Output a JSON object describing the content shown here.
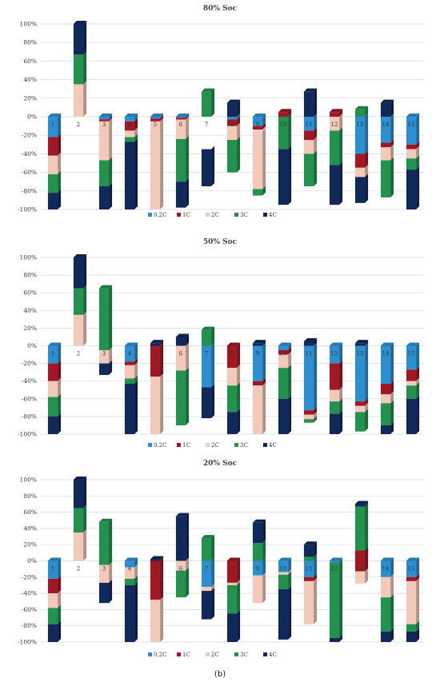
{
  "figure_label": "(b)",
  "colors": {
    "0.2C": "#2e8fd0",
    "1C": "#a01824",
    "2C": "#f3c9bc",
    "3C": "#23914f",
    "4C": "#10285a"
  },
  "chart_data": [
    {
      "type": "bar",
      "stacked": true,
      "title": "80% Soc",
      "ylim": [
        -100,
        100
      ],
      "yticks": [
        "100%",
        "80%",
        "60%",
        "40%",
        "20%",
        "0%",
        "-20%",
        "-40%",
        "-60%",
        "-80%",
        "-100%"
      ],
      "grid": true,
      "legend": "bottom",
      "categories": [
        "1",
        "2",
        "3",
        "4",
        "5",
        "6",
        "7",
        "8",
        "9",
        "10",
        "11",
        "12",
        "13",
        "14",
        "15"
      ],
      "series_names": [
        "0.2C",
        "1C",
        "2C",
        "3C",
        "4C"
      ],
      "bars": [
        [
          [
            -22,
            0
          ],
          [
            -42,
            -22
          ],
          [
            -62,
            -42
          ],
          [
            -82,
            -62
          ],
          [
            -100,
            -82
          ]
        ],
        [
          [
            0,
            0
          ],
          [
            0,
            0
          ],
          [
            0,
            35
          ],
          [
            35,
            67
          ],
          [
            67,
            100
          ]
        ],
        [
          [
            0,
            -3
          ],
          [
            -3,
            -5
          ],
          [
            -5,
            -47
          ],
          [
            -47,
            -75
          ],
          [
            -75,
            -100
          ]
        ],
        [
          [
            0,
            -5
          ],
          [
            -5,
            -15
          ],
          [
            -15,
            -22
          ],
          [
            -22,
            -27
          ],
          [
            -27,
            -100
          ]
        ],
        [
          [
            0,
            -2
          ],
          [
            -2,
            -5
          ],
          [
            -5,
            -100
          ],
          [
            -100,
            -100
          ],
          [
            -100,
            -100
          ]
        ],
        [
          [
            0,
            -1
          ],
          [
            -1,
            -3
          ],
          [
            -3,
            -24
          ],
          [
            -24,
            -70
          ],
          [
            -70,
            -98
          ]
        ],
        [
          [
            0,
            0
          ],
          [
            0,
            0
          ],
          [
            0,
            0
          ],
          [
            0,
            27
          ],
          [
            -35,
            -75
          ]
        ],
        [
          [
            0,
            -3
          ],
          [
            -3,
            -10
          ],
          [
            -10,
            -25
          ],
          [
            -25,
            -60
          ],
          [
            0,
            15
          ]
        ],
        [
          [
            -10,
            0
          ],
          [
            -14,
            -10
          ],
          [
            -15,
            -78
          ],
          [
            -78,
            -85
          ],
          [
            -85,
            -85
          ]
        ],
        [
          [
            0,
            0
          ],
          [
            0,
            5
          ],
          [
            0,
            0
          ],
          [
            0,
            -35
          ],
          [
            -35,
            -95
          ]
        ],
        [
          [
            0,
            -15
          ],
          [
            -15,
            -25
          ],
          [
            -25,
            -40
          ],
          [
            -40,
            -75
          ],
          [
            0,
            27
          ]
        ],
        [
          [
            0,
            0
          ],
          [
            0,
            5
          ],
          [
            0,
            -15
          ],
          [
            -15,
            -52
          ],
          [
            -52,
            -95
          ]
        ],
        [
          [
            0,
            -40
          ],
          [
            -40,
            -55
          ],
          [
            -55,
            -65
          ],
          [
            0,
            8
          ],
          [
            -65,
            -93
          ]
        ],
        [
          [
            0,
            -28
          ],
          [
            -28,
            -33
          ],
          [
            -33,
            -47
          ],
          [
            -47,
            -87
          ],
          [
            0,
            15
          ]
        ],
        [
          [
            0,
            -30
          ],
          [
            -30,
            -35
          ],
          [
            -35,
            -45
          ],
          [
            -45,
            -57
          ],
          [
            -57,
            -100
          ]
        ]
      ]
    },
    {
      "type": "bar",
      "stacked": true,
      "title": "50% Soc",
      "ylim": [
        -100,
        100
      ],
      "yticks": [
        "100%",
        "80%",
        "60%",
        "40%",
        "20%",
        "0%",
        "-20%",
        "-40%",
        "-60%",
        "-80%",
        "-100%"
      ],
      "grid": true,
      "legend": "bottom",
      "categories": [
        "1",
        "2",
        "3",
        "4",
        "5",
        "6",
        "7",
        "8",
        "9",
        "10",
        "11",
        "12",
        "13",
        "14",
        "15"
      ],
      "series_names": [
        "0.2C",
        "1C",
        "2C",
        "3C",
        "4C"
      ],
      "bars": [
        [
          [
            0,
            -20
          ],
          [
            -20,
            -40
          ],
          [
            -40,
            -58
          ],
          [
            -58,
            -80
          ],
          [
            -80,
            -100
          ]
        ],
        [
          [
            0,
            0
          ],
          [
            0,
            0
          ],
          [
            0,
            35
          ],
          [
            35,
            65
          ],
          [
            65,
            100
          ]
        ],
        [
          [
            0,
            0
          ],
          [
            0,
            -5
          ],
          [
            -5,
            -20
          ],
          [
            -5,
            65
          ],
          [
            -20,
            -33
          ]
        ],
        [
          [
            0,
            -18
          ],
          [
            -18,
            -22
          ],
          [
            -22,
            -37
          ],
          [
            -37,
            -43
          ],
          [
            -43,
            -100
          ]
        ],
        [
          [
            0,
            0
          ],
          [
            0,
            -35
          ],
          [
            -35,
            -100
          ],
          [
            -100,
            -100
          ],
          [
            0,
            3
          ]
        ],
        [
          [
            0,
            0
          ],
          [
            0,
            0
          ],
          [
            0,
            -28
          ],
          [
            -28,
            -90
          ],
          [
            0,
            10
          ]
        ],
        [
          [
            0,
            -47
          ],
          [
            -47,
            -47
          ],
          [
            -47,
            -47
          ],
          [
            0,
            18
          ],
          [
            -47,
            -82
          ]
        ],
        [
          [
            0,
            0
          ],
          [
            0,
            -25
          ],
          [
            -25,
            -45
          ],
          [
            -45,
            -75
          ],
          [
            -75,
            -100
          ]
        ],
        [
          [
            0,
            -40
          ],
          [
            -40,
            -45
          ],
          [
            -45,
            -100
          ],
          [
            -100,
            -100
          ],
          [
            0,
            3
          ]
        ],
        [
          [
            0,
            -5
          ],
          [
            -5,
            -10
          ],
          [
            -10,
            -25
          ],
          [
            -25,
            -60
          ],
          [
            -60,
            -100
          ]
        ],
        [
          [
            0,
            -73
          ],
          [
            -73,
            -78
          ],
          [
            -78,
            -83
          ],
          [
            -83,
            -87
          ],
          [
            0,
            5
          ]
        ],
        [
          [
            0,
            -20
          ],
          [
            -20,
            -50
          ],
          [
            -50,
            -63
          ],
          [
            -63,
            -77
          ],
          [
            -77,
            -100
          ]
        ],
        [
          [
            0,
            -63
          ],
          [
            -63,
            -68
          ],
          [
            -68,
            -75
          ],
          [
            -75,
            -97
          ],
          [
            0,
            3
          ]
        ],
        [
          [
            0,
            -43
          ],
          [
            -43,
            -55
          ],
          [
            -55,
            -65
          ],
          [
            -65,
            -90
          ],
          [
            -90,
            -100
          ]
        ],
        [
          [
            0,
            -27
          ],
          [
            -27,
            -40
          ],
          [
            -40,
            -45
          ],
          [
            -45,
            -60
          ],
          [
            -60,
            -100
          ]
        ]
      ]
    },
    {
      "type": "bar",
      "stacked": true,
      "title": "20% Soc",
      "ylim": [
        -100,
        100
      ],
      "yticks": [
        "100%",
        "80%",
        "60%",
        "40%",
        "20%",
        "0%",
        "-20%",
        "-40%",
        "-60%",
        "-80%",
        "-100%"
      ],
      "grid": true,
      "legend": "bottom",
      "categories": [
        "1",
        "2",
        "3",
        "4",
        "5",
        "6",
        "7",
        "8",
        "9",
        "10",
        "11",
        "12",
        "13",
        "14",
        "15"
      ],
      "series_names": [
        "0.2C",
        "1C",
        "2C",
        "3C",
        "4C"
      ],
      "bars": [
        [
          [
            0,
            -22
          ],
          [
            -22,
            -40
          ],
          [
            -40,
            -58
          ],
          [
            -58,
            -78
          ],
          [
            -78,
            -100
          ]
        ],
        [
          [
            0,
            0
          ],
          [
            0,
            0
          ],
          [
            0,
            35
          ],
          [
            35,
            65
          ],
          [
            65,
            100
          ]
        ],
        [
          [
            0,
            0
          ],
          [
            0,
            -5
          ],
          [
            -5,
            -27
          ],
          [
            -5,
            48
          ],
          [
            -27,
            -52
          ]
        ],
        [
          [
            0,
            -8
          ],
          [
            -8,
            -8
          ],
          [
            -8,
            -22
          ],
          [
            -22,
            -30
          ],
          [
            -30,
            -100
          ]
        ],
        [
          [
            0,
            0
          ],
          [
            0,
            -48
          ],
          [
            -48,
            -100
          ],
          [
            -100,
            -100
          ],
          [
            0,
            2
          ]
        ],
        [
          [
            0,
            0
          ],
          [
            0,
            0
          ],
          [
            0,
            -12
          ],
          [
            -12,
            -45
          ],
          [
            0,
            55
          ]
        ],
        [
          [
            0,
            -32
          ],
          [
            -32,
            -32
          ],
          [
            -32,
            -37
          ],
          [
            0,
            28
          ],
          [
            -37,
            -72
          ]
        ],
        [
          [
            0,
            0
          ],
          [
            0,
            -27
          ],
          [
            -27,
            -30
          ],
          [
            -30,
            -65
          ],
          [
            -65,
            -100
          ]
        ],
        [
          [
            0,
            -18
          ],
          [
            -18,
            -18
          ],
          [
            -18,
            -52
          ],
          [
            0,
            22
          ],
          [
            22,
            47
          ]
        ],
        [
          [
            0,
            -14
          ],
          [
            -14,
            -14
          ],
          [
            -14,
            -17
          ],
          [
            -17,
            -35
          ],
          [
            -35,
            -97
          ]
        ],
        [
          [
            0,
            -20
          ],
          [
            -20,
            -25
          ],
          [
            -25,
            -78
          ],
          [
            0,
            5
          ],
          [
            5,
            20
          ]
        ],
        [
          [
            0,
            -2
          ],
          [
            -2,
            -2
          ],
          [
            -2,
            -2
          ],
          [
            -2,
            -95
          ],
          [
            -95,
            -100
          ]
        ],
        [
          [
            0,
            13
          ],
          [
            13,
            -13
          ],
          [
            -13,
            -28
          ],
          [
            13,
            67
          ],
          [
            67,
            70
          ]
        ],
        [
          [
            0,
            -20
          ],
          [
            -20,
            -20
          ],
          [
            -20,
            -45
          ],
          [
            -45,
            -87
          ],
          [
            -87,
            -100
          ]
        ],
        [
          [
            0,
            -20
          ],
          [
            -20,
            -25
          ],
          [
            -25,
            -78
          ],
          [
            -78,
            -87
          ],
          [
            -87,
            -100
          ]
        ]
      ]
    }
  ]
}
